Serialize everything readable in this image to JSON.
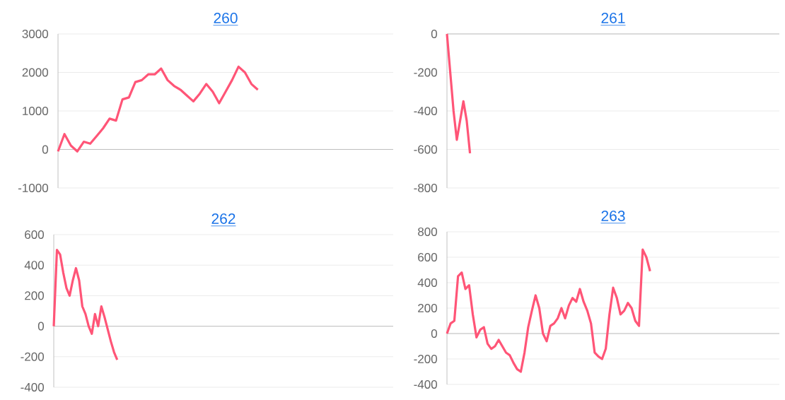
{
  "chart_data": [
    {
      "type": "line",
      "title": "260",
      "color": "#ff5577",
      "grid": "y",
      "tick_labels": "y",
      "ylim": [
        -1000,
        3000
      ],
      "yticks": [
        -1000,
        0,
        1000,
        2000,
        3000
      ],
      "categories": [
        null,
        null,
        null,
        null,
        null,
        null,
        null,
        null,
        null,
        null,
        null,
        null,
        null,
        null,
        null,
        null,
        null,
        null,
        null,
        null,
        null,
        null,
        null,
        null,
        null,
        null,
        null,
        null,
        null,
        null,
        null,
        null,
        null,
        null,
        null,
        null,
        null,
        null,
        null,
        null,
        null,
        null,
        null,
        null,
        null,
        null,
        null,
        null,
        null,
        null,
        null,
        null,
        null
      ],
      "values": [
        -50,
        400,
        100,
        -50,
        200,
        150,
        350,
        550,
        800,
        750,
        1300,
        1350,
        1750,
        1800,
        1950,
        1950,
        2100,
        1800,
        1650,
        1550,
        1400,
        1250,
        1450,
        1700,
        1500,
        1200,
        1500,
        1800,
        2150,
        2000,
        1700,
        1550,
        null,
        null,
        null,
        null,
        null,
        null,
        null,
        null,
        null,
        null,
        null,
        null,
        null,
        null,
        null,
        null,
        null,
        null,
        null,
        null,
        null
      ]
    },
    {
      "type": "line",
      "title": "261",
      "color": "#ff5577",
      "grid": "y",
      "tick_labels": "y",
      "ylim": [
        -800,
        0
      ],
      "yticks": [
        -800,
        -600,
        -400,
        -200,
        0
      ],
      "categories": [
        null,
        null,
        null,
        null,
        null,
        null,
        null,
        null,
        null,
        null,
        null,
        null,
        null,
        null,
        null,
        null,
        null,
        null,
        null,
        null,
        null,
        null,
        null,
        null,
        null,
        null,
        null,
        null,
        null,
        null,
        null,
        null,
        null,
        null,
        null,
        null,
        null,
        null,
        null,
        null,
        null,
        null,
        null,
        null,
        null,
        null,
        null,
        null,
        null,
        null,
        null,
        null,
        null,
        null,
        null,
        null,
        null,
        null,
        null,
        null,
        null,
        null,
        null,
        null,
        null,
        null,
        null,
        null,
        null,
        null,
        null,
        null,
        null,
        null,
        null,
        null,
        null,
        null,
        null,
        null,
        null,
        null,
        null,
        null,
        null,
        null,
        null,
        null,
        null,
        null,
        null,
        null,
        null,
        null,
        null,
        null,
        null,
        null,
        null,
        null,
        null,
        null
      ],
      "values": [
        0,
        -200,
        -400,
        -550,
        -450,
        -350,
        -450,
        -620,
        null,
        null,
        null,
        null,
        null,
        null,
        null,
        null,
        null,
        null,
        null,
        null,
        null,
        null,
        null,
        null,
        null,
        null,
        null,
        null,
        null,
        null,
        null,
        null,
        null,
        null,
        null,
        null,
        null,
        null,
        null,
        null,
        null,
        null,
        null,
        null,
        null,
        null,
        null,
        null,
        null,
        null,
        null,
        null,
        null,
        null,
        null,
        null,
        null,
        null,
        null,
        null,
        null,
        null,
        null,
        null,
        null,
        null,
        null,
        null,
        null,
        null,
        null,
        null,
        null,
        null,
        null,
        null,
        null,
        null,
        null,
        null,
        null,
        null,
        null,
        null,
        null,
        null,
        null,
        null,
        null,
        null,
        null,
        null,
        null,
        null,
        null,
        null,
        null,
        null,
        null,
        null,
        null,
        null
      ]
    },
    {
      "type": "line",
      "title": "262",
      "color": "#ff5577",
      "grid": "y",
      "tick_labels": "y",
      "ylim": [
        -400,
        600
      ],
      "yticks": [
        -400,
        -200,
        0,
        200,
        400,
        600
      ],
      "categories": [
        null,
        null,
        null,
        null,
        null,
        null,
        null,
        null,
        null,
        null,
        null,
        null,
        null,
        null,
        null,
        null,
        null,
        null,
        null,
        null,
        null,
        null,
        null,
        null,
        null,
        null,
        null,
        null,
        null,
        null,
        null,
        null,
        null,
        null,
        null,
        null,
        null,
        null,
        null,
        null,
        null,
        null,
        null,
        null,
        null,
        null,
        null,
        null,
        null,
        null,
        null,
        null,
        null,
        null,
        null,
        null,
        null,
        null,
        null,
        null,
        null,
        null,
        null,
        null,
        null,
        null,
        null,
        null,
        null,
        null,
        null,
        null,
        null,
        null,
        null,
        null,
        null,
        null,
        null,
        null,
        null,
        null,
        null,
        null,
        null,
        null,
        null,
        null,
        null,
        null,
        null,
        null,
        null,
        null,
        null,
        null,
        null,
        null,
        null,
        null,
        null,
        null,
        null,
        null,
        null,
        null,
        null,
        null
      ],
      "values": [
        0,
        500,
        470,
        350,
        250,
        200,
        300,
        380,
        300,
        130,
        80,
        0,
        -50,
        80,
        0,
        130,
        60,
        -20,
        -100,
        -170,
        -220,
        null,
        null,
        null,
        null,
        null,
        null,
        null,
        null,
        null,
        null,
        null,
        null,
        null,
        null,
        null,
        null,
        null,
        null,
        null,
        null,
        null,
        null,
        null,
        null,
        null,
        null,
        null,
        null,
        null,
        null,
        null,
        null,
        null,
        null,
        null,
        null,
        null,
        null,
        null,
        null,
        null,
        null,
        null,
        null,
        null,
        null,
        null,
        null,
        null,
        null,
        null,
        null,
        null,
        null,
        null,
        null,
        null,
        null,
        null,
        null,
        null,
        null,
        null,
        null,
        null,
        null,
        null,
        null,
        null,
        null,
        null,
        null,
        null,
        null,
        null,
        null,
        null,
        null,
        null,
        null,
        null,
        null,
        null,
        null,
        null,
        null,
        null
      ]
    },
    {
      "type": "line",
      "title": "263",
      "color": "#ff5577",
      "grid": "y",
      "tick_labels": "y",
      "ylim": [
        -400,
        800
      ],
      "yticks": [
        -400,
        -200,
        0,
        200,
        400,
        600,
        800
      ],
      "categories": [
        null,
        null,
        null,
        null,
        null,
        null,
        null,
        null,
        null,
        null,
        null,
        null,
        null,
        null,
        null,
        null,
        null,
        null,
        null,
        null,
        null,
        null,
        null,
        null,
        null,
        null,
        null,
        null,
        null,
        null,
        null,
        null,
        null,
        null,
        null,
        null,
        null,
        null,
        null,
        null,
        null,
        null,
        null,
        null,
        null,
        null,
        null,
        null,
        null,
        null,
        null,
        null,
        null,
        null,
        null,
        null,
        null,
        null,
        null,
        null,
        null,
        null,
        null,
        null,
        null,
        null,
        null,
        null,
        null,
        null,
        null,
        null,
        null,
        null,
        null,
        null,
        null,
        null,
        null,
        null,
        null,
        null,
        null,
        null,
        null,
        null,
        null,
        null,
        null,
        null,
        null
      ],
      "values": [
        0,
        80,
        100,
        450,
        480,
        350,
        380,
        150,
        -30,
        30,
        50,
        -80,
        -120,
        -100,
        -50,
        -100,
        -150,
        -170,
        -230,
        -280,
        -300,
        -150,
        50,
        180,
        300,
        200,
        0,
        -60,
        60,
        80,
        120,
        200,
        120,
        220,
        280,
        250,
        350,
        250,
        180,
        80,
        -150,
        -180,
        -200,
        -120,
        150,
        360,
        280,
        150,
        180,
        240,
        200,
        100,
        60,
        660,
        600,
        490,
        null,
        null,
        null,
        null,
        null,
        null,
        null,
        null,
        null,
        null,
        null,
        null,
        null,
        null,
        null,
        null,
        null,
        null,
        null,
        null,
        null,
        null,
        null,
        null,
        null,
        null,
        null,
        null,
        null,
        null,
        null,
        null,
        null,
        null,
        null
      ]
    }
  ]
}
